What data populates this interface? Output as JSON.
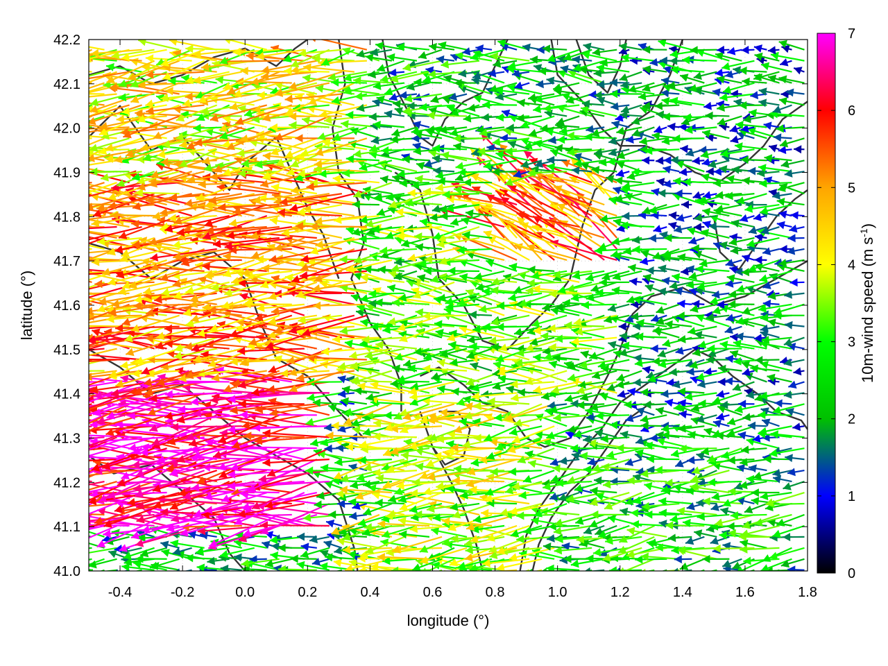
{
  "chart_data": {
    "type": "vector-field",
    "title": "",
    "xlabel": "longitude (°)",
    "ylabel": "latitude (°)",
    "xlim": [
      -0.5,
      1.8
    ],
    "ylim": [
      41.0,
      42.2
    ],
    "xticks": [
      "-0.4",
      "-0.2",
      "0.0",
      "0.2",
      "0.4",
      "0.6",
      "0.8",
      "1.0",
      "1.2",
      "1.4",
      "1.6",
      "1.8"
    ],
    "xtick_values": [
      -0.4,
      -0.2,
      0.0,
      0.2,
      0.4,
      0.6,
      0.8,
      1.0,
      1.2,
      1.4,
      1.6,
      1.8
    ],
    "yticks": [
      "41.0",
      "41.1",
      "41.2",
      "41.3",
      "41.4",
      "41.5",
      "41.6",
      "41.7",
      "41.8",
      "41.9",
      "42.0",
      "42.1",
      "42.2"
    ],
    "ytick_values": [
      41.0,
      41.1,
      41.2,
      41.3,
      41.4,
      41.5,
      41.6,
      41.7,
      41.8,
      41.9,
      42.0,
      42.1,
      42.2
    ],
    "grid": true,
    "colorbar": {
      "label": "10m-wind speed (m s⁻¹)",
      "label_main": "10m-wind speed (m s",
      "label_sup": "-1",
      "label_end": ")",
      "range": [
        0,
        7
      ],
      "ticks": [
        "0",
        "1",
        "2",
        "3",
        "4",
        "5",
        "6",
        "7"
      ],
      "tick_values": [
        0,
        1,
        2,
        3,
        4,
        5,
        6,
        7
      ],
      "placement": "right",
      "colors": [
        "#000000",
        "#0000ff",
        "#00c000",
        "#00ff00",
        "#ffff00",
        "#ffa500",
        "#ff0000",
        "#ff00ff"
      ]
    },
    "contour_color": "#333333",
    "wind_regions": [
      {
        "lon": [
          -0.5,
          0.3
        ],
        "lat": [
          41.1,
          41.45
        ],
        "speed": 6.6,
        "direction_deg": 186
      },
      {
        "lon": [
          -0.5,
          0.4
        ],
        "lat": [
          41.45,
          41.9
        ],
        "speed": 5.0,
        "direction_deg": 182
      },
      {
        "lon": [
          -0.5,
          0.4
        ],
        "lat": [
          41.9,
          42.2
        ],
        "speed": 4.2,
        "direction_deg": 185
      },
      {
        "lon": [
          0.4,
          1.0
        ],
        "lat": [
          41.0,
          41.4
        ],
        "speed": 3.6,
        "direction_deg": 185
      },
      {
        "lon": [
          0.4,
          1.2
        ],
        "lat": [
          41.4,
          41.9
        ],
        "speed": 3.0,
        "direction_deg": 180
      },
      {
        "lon": [
          0.8,
          1.2
        ],
        "lat": [
          41.7,
          41.9
        ],
        "speed": 5.2,
        "direction_deg": 150
      },
      {
        "lon": [
          1.0,
          1.8
        ],
        "lat": [
          41.0,
          41.3
        ],
        "speed": 2.4,
        "direction_deg": 185
      },
      {
        "lon": [
          1.2,
          1.8
        ],
        "lat": [
          41.3,
          42.2
        ],
        "speed": 1.8,
        "direction_deg": 180
      },
      {
        "lon": [
          0.4,
          1.2
        ],
        "lat": [
          41.9,
          42.2
        ],
        "speed": 2.3,
        "direction_deg": 180
      }
    ],
    "contours": [
      {
        "name": "contour-1",
        "points": [
          [
            -0.5,
            41.98
          ],
          [
            -0.4,
            42.05
          ],
          [
            -0.3,
            41.95
          ],
          [
            -0.2,
            41.98
          ],
          [
            -0.1,
            41.9
          ],
          [
            -0.05,
            41.86
          ],
          [
            0.0,
            41.92
          ],
          [
            0.1,
            41.98
          ],
          [
            0.15,
            41.9
          ],
          [
            0.2,
            41.82
          ],
          [
            0.25,
            41.76
          ],
          [
            0.3,
            41.66
          ]
        ]
      },
      {
        "name": "contour-2",
        "points": [
          [
            -0.5,
            41.74
          ],
          [
            -0.4,
            41.72
          ],
          [
            -0.3,
            41.66
          ],
          [
            -0.2,
            41.7
          ],
          [
            -0.1,
            41.72
          ],
          [
            0.0,
            41.66
          ],
          [
            0.05,
            41.56
          ],
          [
            0.1,
            41.48
          ],
          [
            0.2,
            41.44
          ],
          [
            0.3,
            41.36
          ],
          [
            0.38,
            41.3
          ]
        ]
      },
      {
        "name": "contour-3",
        "points": [
          [
            -0.5,
            41.5
          ],
          [
            -0.4,
            41.46
          ],
          [
            -0.3,
            41.4
          ],
          [
            -0.2,
            41.42
          ],
          [
            -0.1,
            41.36
          ],
          [
            0.0,
            41.3
          ],
          [
            0.1,
            41.26
          ],
          [
            0.2,
            41.22
          ],
          [
            0.3,
            41.16
          ],
          [
            0.35,
            41.05
          ],
          [
            0.36,
            41.0
          ]
        ]
      },
      {
        "name": "contour-4",
        "points": [
          [
            -0.5,
            41.26
          ],
          [
            -0.42,
            41.22
          ],
          [
            -0.3,
            41.24
          ],
          [
            -0.2,
            41.18
          ],
          [
            -0.1,
            41.12
          ],
          [
            -0.05,
            41.04
          ],
          [
            0.0,
            41.0
          ]
        ]
      },
      {
        "name": "contour-5",
        "points": [
          [
            0.3,
            42.2
          ],
          [
            0.32,
            42.1
          ],
          [
            0.28,
            42.0
          ],
          [
            0.3,
            41.9
          ],
          [
            0.36,
            41.84
          ],
          [
            0.38,
            41.74
          ],
          [
            0.34,
            41.66
          ],
          [
            0.4,
            41.56
          ],
          [
            0.46,
            41.5
          ],
          [
            0.5,
            41.42
          ],
          [
            0.5,
            41.36
          ]
        ]
      },
      {
        "name": "contour-6",
        "points": [
          [
            0.44,
            42.2
          ],
          [
            0.46,
            42.12
          ],
          [
            0.52,
            42.04
          ],
          [
            0.56,
            41.98
          ],
          [
            0.6,
            41.96
          ],
          [
            0.64,
            42.02
          ],
          [
            0.7,
            42.06
          ],
          [
            0.76,
            42.08
          ],
          [
            0.8,
            42.14
          ],
          [
            0.84,
            42.2
          ]
        ]
      },
      {
        "name": "contour-7",
        "points": [
          [
            0.48,
            41.9
          ],
          [
            0.56,
            41.86
          ],
          [
            0.6,
            41.76
          ],
          [
            0.62,
            41.66
          ],
          [
            0.7,
            41.6
          ],
          [
            0.76,
            41.52
          ],
          [
            0.84,
            41.5
          ],
          [
            0.92,
            41.56
          ],
          [
            0.98,
            41.6
          ],
          [
            1.04,
            41.66
          ],
          [
            1.08,
            41.78
          ],
          [
            1.12,
            41.86
          ],
          [
            1.18,
            41.9
          ],
          [
            1.22,
            42.0
          ],
          [
            1.3,
            42.04
          ],
          [
            1.36,
            42.12
          ],
          [
            1.4,
            42.2
          ]
        ]
      },
      {
        "name": "contour-8",
        "points": [
          [
            0.56,
            41.44
          ],
          [
            0.62,
            41.46
          ],
          [
            0.7,
            41.42
          ],
          [
            0.76,
            41.38
          ],
          [
            0.84,
            41.36
          ],
          [
            0.9,
            41.3
          ],
          [
            0.96,
            41.28
          ],
          [
            1.04,
            41.3
          ],
          [
            1.1,
            41.36
          ],
          [
            1.16,
            41.44
          ],
          [
            1.2,
            41.5
          ],
          [
            1.24,
            41.58
          ],
          [
            1.3,
            41.62
          ],
          [
            1.4,
            41.64
          ],
          [
            1.5,
            41.6
          ],
          [
            1.6,
            41.62
          ],
          [
            1.7,
            41.66
          ],
          [
            1.8,
            41.7
          ]
        ]
      },
      {
        "name": "contour-9",
        "points": [
          [
            0.56,
            41.36
          ],
          [
            0.6,
            41.28
          ],
          [
            0.66,
            41.2
          ],
          [
            0.7,
            41.14
          ],
          [
            0.74,
            41.06
          ],
          [
            0.76,
            41.0
          ]
        ]
      },
      {
        "name": "contour-10",
        "points": [
          [
            0.88,
            41.0
          ],
          [
            0.9,
            41.08
          ],
          [
            0.94,
            41.14
          ],
          [
            1.0,
            41.2
          ],
          [
            1.06,
            41.26
          ],
          [
            1.14,
            41.32
          ],
          [
            1.2,
            41.38
          ],
          [
            1.28,
            41.42
          ],
          [
            1.36,
            41.46
          ],
          [
            1.44,
            41.5
          ],
          [
            1.5,
            41.48
          ],
          [
            1.56,
            41.44
          ],
          [
            1.64,
            41.4
          ],
          [
            1.7,
            41.36
          ],
          [
            1.78,
            41.34
          ],
          [
            1.8,
            41.32
          ]
        ]
      },
      {
        "name": "contour-11",
        "points": [
          [
            0.92,
            41.0
          ],
          [
            0.94,
            41.06
          ],
          [
            0.98,
            41.12
          ],
          [
            1.04,
            41.18
          ],
          [
            1.1,
            41.22
          ],
          [
            1.16,
            41.28
          ],
          [
            1.22,
            41.34
          ],
          [
            1.3,
            41.38
          ]
        ]
      },
      {
        "name": "contour-12",
        "points": [
          [
            0.98,
            42.2
          ],
          [
            1.0,
            42.12
          ],
          [
            1.08,
            42.06
          ],
          [
            1.14,
            42.0
          ],
          [
            1.2,
            41.96
          ],
          [
            1.28,
            41.96
          ],
          [
            1.36,
            41.94
          ],
          [
            1.44,
            41.9
          ],
          [
            1.52,
            41.88
          ],
          [
            1.6,
            41.92
          ],
          [
            1.66,
            41.96
          ],
          [
            1.72,
            42.02
          ],
          [
            1.8,
            42.06
          ]
        ]
      },
      {
        "name": "contour-13",
        "points": [
          [
            1.5,
            41.8
          ],
          [
            1.52,
            41.72
          ],
          [
            1.58,
            41.68
          ],
          [
            1.64,
            41.74
          ],
          [
            1.7,
            41.8
          ],
          [
            1.76,
            41.84
          ],
          [
            1.8,
            41.86
          ]
        ]
      },
      {
        "name": "contour-14",
        "points": [
          [
            -0.5,
            42.12
          ],
          [
            -0.4,
            42.14
          ],
          [
            -0.3,
            42.1
          ],
          [
            -0.2,
            42.12
          ],
          [
            -0.1,
            42.16
          ],
          [
            0.0,
            42.18
          ],
          [
            0.1,
            42.14
          ],
          [
            0.16,
            42.18
          ],
          [
            0.2,
            42.2
          ]
        ]
      },
      {
        "name": "contour-15",
        "points": [
          [
            0.6,
            41.28
          ],
          [
            0.64,
            41.24
          ],
          [
            0.7,
            41.26
          ],
          [
            0.72,
            41.32
          ],
          [
            0.68,
            41.36
          ],
          [
            0.62,
            41.36
          ]
        ]
      },
      {
        "name": "contour-16",
        "points": [
          [
            1.06,
            42.2
          ],
          [
            1.1,
            42.12
          ],
          [
            1.16,
            42.08
          ],
          [
            1.2,
            42.14
          ],
          [
            1.22,
            42.2
          ]
        ]
      }
    ]
  }
}
